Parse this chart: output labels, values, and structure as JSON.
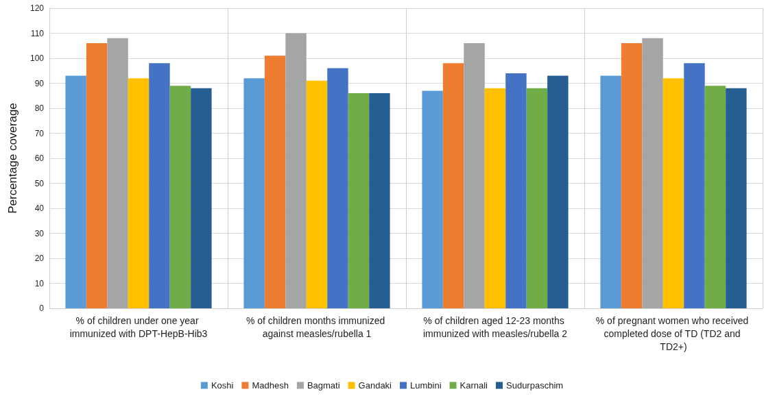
{
  "chart_data": {
    "type": "bar",
    "ylabel": "Percentage coverage",
    "categories": [
      "% of children under one year immunized with DPT-HepB-Hib3",
      "% of children months immunized against measles/rubella 1",
      "% of children aged 12-23 months immunized with measles/rubella 2",
      "% of pregnant women who received completed dose of TD (TD2 and TD2+)"
    ],
    "series": [
      {
        "name": "Koshi",
        "color": "#5b9bd5",
        "values": [
          93,
          92,
          87,
          93
        ]
      },
      {
        "name": "Madhesh",
        "color": "#ed7d31",
        "values": [
          106,
          101,
          98,
          106
        ]
      },
      {
        "name": "Bagmati",
        "color": "#a5a5a5",
        "values": [
          108,
          110,
          106,
          108
        ]
      },
      {
        "name": "Gandaki",
        "color": "#ffc000",
        "values": [
          92,
          91,
          88,
          92
        ]
      },
      {
        "name": "Lumbini",
        "color": "#4472c4",
        "values": [
          98,
          96,
          94,
          98
        ]
      },
      {
        "name": "Karnali",
        "color": "#70ad47",
        "values": [
          89,
          86,
          88,
          89
        ]
      },
      {
        "name": "Sudurpaschim",
        "color": "#255e91",
        "values": [
          88,
          86,
          93,
          88
        ]
      }
    ],
    "ylim": [
      0,
      120
    ],
    "yticks": [
      0,
      10,
      20,
      30,
      40,
      50,
      60,
      70,
      80,
      90,
      100,
      110,
      120
    ],
    "grid": true,
    "legend": "bottom"
  }
}
